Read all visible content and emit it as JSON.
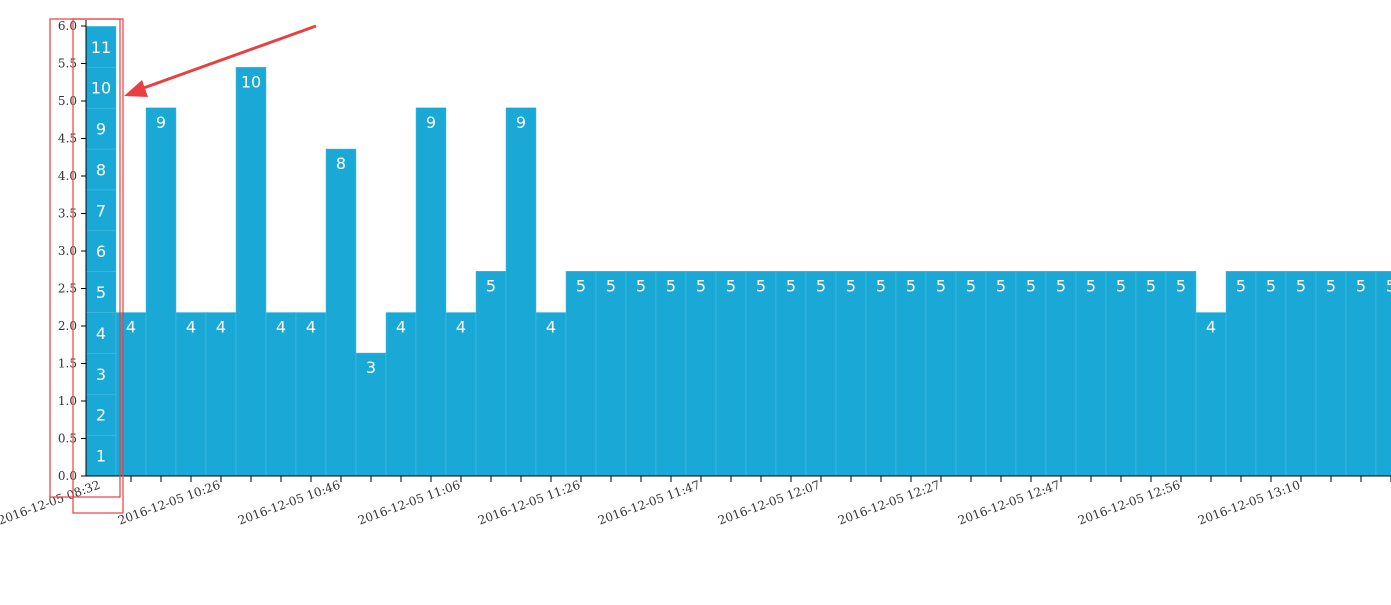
{
  "chart_data": {
    "type": "bar",
    "title": "",
    "xlabel": "",
    "ylabel": "",
    "ylim": [
      0,
      6
    ],
    "y_ticks": [
      "0.0",
      "0.5",
      "1.0",
      "1.5",
      "2.0",
      "2.5",
      "3.0",
      "3.5",
      "4.0",
      "4.5",
      "5.0",
      "5.5",
      "6.0"
    ],
    "x_tick_labels": [
      "2016-12-05 08:32",
      "2016-12-05 10:26",
      "2016-12-05 10:46",
      "2016-12-05 11:06",
      "2016-12-05 11:26",
      "2016-12-05 11:47",
      "2016-12-05 12:07",
      "2016-12-05 12:27",
      "2016-12-05 12:47",
      "2016-12-05 12:56",
      "2016-12-05 13:10"
    ],
    "stacked_first_bar": {
      "values": [
        0.545,
        0.545,
        0.545,
        0.545,
        0.545,
        0.545,
        0.545,
        0.545,
        0.545,
        0.545,
        0.545
      ],
      "labels": [
        "1",
        "2",
        "3",
        "4",
        "5",
        "6",
        "7",
        "8",
        "9",
        "10",
        "11"
      ]
    },
    "bar_labels": [
      "4",
      "9",
      "4",
      "4",
      "10",
      "4",
      "4",
      "8",
      "3",
      "4",
      "9",
      "4",
      "5",
      "9",
      "4",
      "5",
      "5",
      "5",
      "5",
      "5",
      "5",
      "5",
      "5",
      "5",
      "5",
      "5",
      "5",
      "5",
      "5",
      "5",
      "5",
      "5",
      "5",
      "5",
      "5",
      "5",
      "4",
      "5",
      "5",
      "5",
      "5",
      "5",
      "5"
    ],
    "values": [
      2.18,
      4.91,
      2.18,
      2.18,
      5.45,
      2.18,
      2.18,
      4.36,
      1.64,
      2.18,
      4.91,
      2.18,
      2.73,
      4.91,
      2.18,
      2.73,
      2.73,
      2.73,
      2.73,
      2.73,
      2.73,
      2.73,
      2.73,
      2.73,
      2.73,
      2.73,
      2.73,
      2.73,
      2.73,
      2.73,
      2.73,
      2.73,
      2.73,
      2.73,
      2.73,
      2.73,
      2.18,
      2.73,
      2.73,
      2.73,
      2.73,
      2.73,
      2.73
    ],
    "bar_color": "#1aa9d6",
    "annotation_color": "#e84040",
    "grid": false
  }
}
